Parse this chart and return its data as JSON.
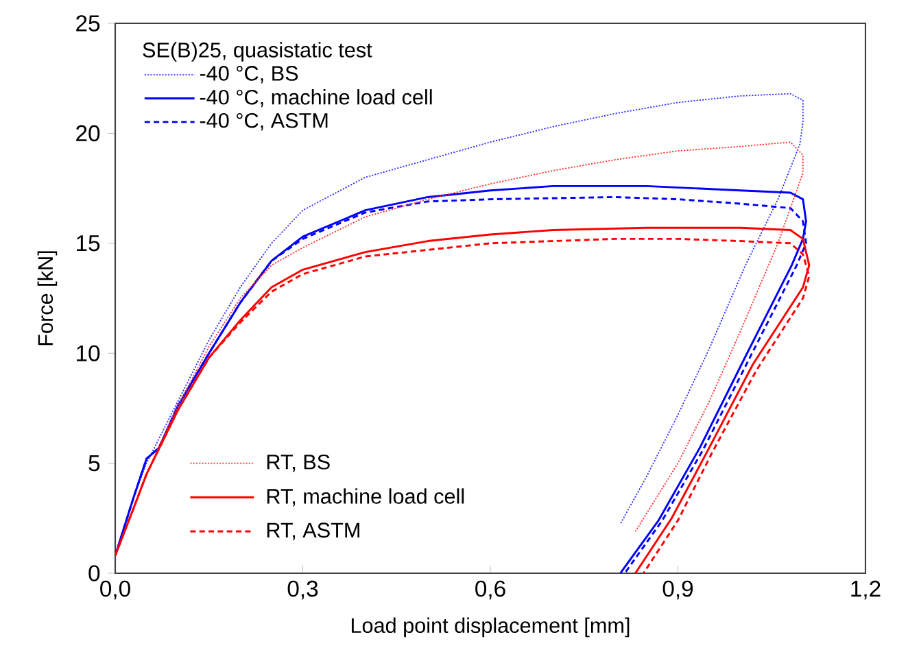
{
  "chart_data": {
    "type": "line",
    "xlabel": "Load point displacement [mm]",
    "ylabel": "Force [kN]",
    "legend_title": "SE(B)25, quasistatic test",
    "legend": "left",
    "xlim": [
      0,
      1.2
    ],
    "ylim": [
      0,
      25
    ],
    "xticks": [
      {
        "value": 0,
        "label": "0,0"
      },
      {
        "value": 0.3,
        "label": "0,3"
      },
      {
        "value": 0.6,
        "label": "0,6"
      },
      {
        "value": 0.9,
        "label": "0,9"
      },
      {
        "value": 1.2,
        "label": "1,2"
      }
    ],
    "yticks": [
      0,
      5,
      10,
      15,
      20,
      25
    ],
    "series": [
      {
        "name": "-40 °C, BS",
        "color": "#3333ff",
        "line_style": "dotted",
        "x": [
          0,
          0.03,
          0.05,
          0.1,
          0.15,
          0.2,
          0.25,
          0.3,
          0.4,
          0.5,
          0.6,
          0.7,
          0.8,
          0.9,
          1.0,
          1.08,
          1.1,
          1.1,
          1.095,
          1.06,
          1.008,
          0.95,
          0.9,
          0.85,
          0.808
        ],
        "values": [
          0.8,
          3.5,
          5.0,
          7.8,
          10.6,
          13.0,
          15.0,
          16.5,
          18.0,
          18.8,
          19.6,
          20.3,
          20.9,
          21.4,
          21.7,
          21.8,
          21.5,
          20.5,
          19.5,
          17.0,
          14.0,
          10.2,
          7.2,
          4.4,
          2.25
        ]
      },
      {
        "name": "-40 °C, machine load cell",
        "color": "#0000ff",
        "line_style": "solid",
        "x": [
          0,
          0.03,
          0.05,
          0.07,
          0.1,
          0.15,
          0.2,
          0.25,
          0.3,
          0.4,
          0.5,
          0.6,
          0.7,
          0.85,
          1.0,
          1.08,
          1.1,
          1.105,
          1.1,
          1.082,
          1.008,
          0.935,
          0.869,
          0.808
        ],
        "values": [
          0.8,
          3.5,
          5.2,
          5.7,
          7.6,
          10.0,
          12.3,
          14.2,
          15.3,
          16.5,
          17.1,
          17.4,
          17.6,
          17.6,
          17.4,
          17.3,
          17.0,
          16.0,
          15.2,
          14.0,
          9.85,
          5.7,
          2.4,
          0
        ]
      },
      {
        "name": "-40 °C, ASTM",
        "color": "#0000ff",
        "line_style": "dashed",
        "x": [
          0,
          0.03,
          0.05,
          0.07,
          0.1,
          0.15,
          0.2,
          0.25,
          0.3,
          0.4,
          0.5,
          0.6,
          0.8,
          0.9,
          1.0,
          1.08,
          1.1,
          1.105,
          1.09,
          1.015,
          0.94,
          0.875,
          0.815
        ],
        "values": [
          0.8,
          3.5,
          5.2,
          5.7,
          7.6,
          10.0,
          12.3,
          14.2,
          15.2,
          16.4,
          16.9,
          17.0,
          17.1,
          17.0,
          16.8,
          16.6,
          16.0,
          15.0,
          14.0,
          9.8,
          5.6,
          2.4,
          0
        ]
      },
      {
        "name": "RT, BS",
        "color": "#ff3333",
        "line_style": "dotted",
        "x": [
          0,
          0.03,
          0.05,
          0.1,
          0.15,
          0.2,
          0.25,
          0.3,
          0.4,
          0.5,
          0.6,
          0.7,
          0.8,
          0.9,
          1.0,
          1.08,
          1.1,
          1.1,
          1.06,
          1.0,
          0.95,
          0.9,
          0.832
        ],
        "values": [
          0.8,
          3.0,
          4.5,
          7.6,
          10.3,
          12.5,
          14.0,
          14.8,
          16.2,
          17.0,
          17.7,
          18.3,
          18.8,
          19.2,
          19.4,
          19.6,
          19.0,
          18.2,
          15.0,
          11.0,
          7.8,
          5.0,
          1.9
        ]
      },
      {
        "name": "RT, machine load cell",
        "color": "#ff0000",
        "line_style": "solid",
        "x": [
          0,
          0.03,
          0.05,
          0.1,
          0.15,
          0.2,
          0.25,
          0.3,
          0.4,
          0.5,
          0.6,
          0.7,
          0.85,
          1.0,
          1.08,
          1.1,
          1.11,
          1.1,
          1.02,
          0.95,
          0.89,
          0.832
        ],
        "values": [
          0.8,
          3.0,
          4.5,
          7.4,
          9.8,
          11.5,
          13.0,
          13.8,
          14.6,
          15.1,
          15.4,
          15.6,
          15.7,
          15.7,
          15.6,
          15.2,
          14.0,
          13.0,
          9.5,
          5.7,
          2.5,
          0
        ]
      },
      {
        "name": "RT, ASTM",
        "color": "#ff0000",
        "line_style": "dashed",
        "x": [
          0,
          0.03,
          0.05,
          0.1,
          0.15,
          0.2,
          0.25,
          0.3,
          0.4,
          0.6,
          0.8,
          0.9,
          1.0,
          1.08,
          1.1,
          1.11,
          1.1,
          1.025,
          0.955,
          0.9,
          0.845
        ],
        "values": [
          0.8,
          3.0,
          4.5,
          7.4,
          9.8,
          11.4,
          12.8,
          13.6,
          14.4,
          15.0,
          15.2,
          15.2,
          15.1,
          15.0,
          14.5,
          13.5,
          12.5,
          9.2,
          5.5,
          2.4,
          0
        ]
      }
    ]
  }
}
